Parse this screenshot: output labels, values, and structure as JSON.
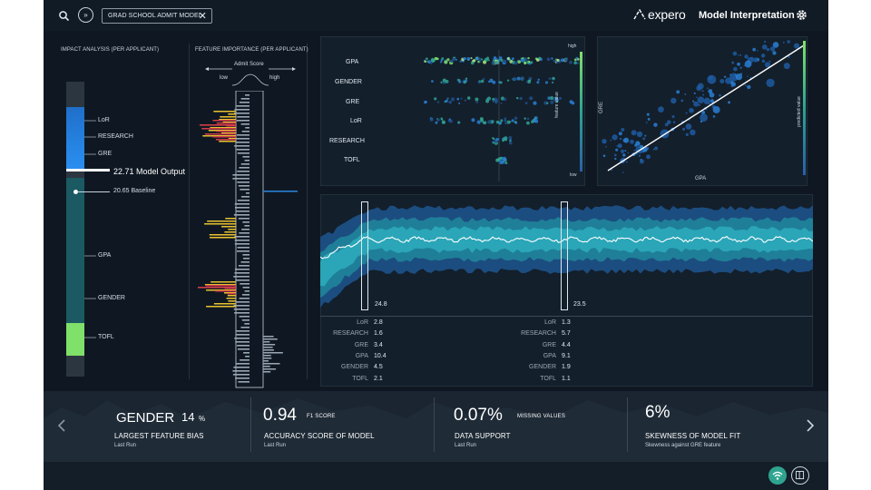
{
  "header": {
    "search_icon": "search-icon",
    "forward_icon": "double-chevron-right-icon",
    "forward_label": "»",
    "chip_label": "GRAD SCHOOL ADMIT MODEL",
    "chip_close": "✕",
    "brand": "expero",
    "title": "Model Interpretation",
    "settings_icon": "gear-icon"
  },
  "impact": {
    "title": "IMPACT ANALYSIS (per applicant)",
    "labels": [
      "LoR",
      "RESEARCH",
      "GRE"
    ],
    "model_output": "22.71 Model Output",
    "baseline": "20.65 Baseline",
    "lower_labels": [
      "GPA",
      "GENDER",
      "TOFL"
    ]
  },
  "importance": {
    "title": "FEATURE IMPORTANCE (per applicant)",
    "admit_score": "Admit Score",
    "low": "low",
    "high": "high"
  },
  "beeswarm": {
    "features": [
      "GPA",
      "GENDER",
      "GRE",
      "LoR",
      "RESEARCH",
      "TOFL"
    ],
    "legend_high": "high",
    "legend_low": "low",
    "legend_title": "feature value"
  },
  "scatter": {
    "xlabel": "GPA",
    "ylabel": "GRE",
    "legend_title": "predicted value"
  },
  "series": {
    "marker1_value": "24.8",
    "marker2_value": "23.5",
    "table1": [
      {
        "k": "LoR",
        "v": "2.8"
      },
      {
        "k": "RESEARCH",
        "v": "1.6"
      },
      {
        "k": "GRE",
        "v": "3.4"
      },
      {
        "k": "GPA",
        "v": "10.4"
      },
      {
        "k": "GENDER",
        "v": "4.5"
      },
      {
        "k": "TOFL",
        "v": "2.1"
      }
    ],
    "table2": [
      {
        "k": "LoR",
        "v": "1.3"
      },
      {
        "k": "RESEARCH",
        "v": "5.7"
      },
      {
        "k": "GRE",
        "v": "4.4"
      },
      {
        "k": "GPA",
        "v": "9.1"
      },
      {
        "k": "GENDER",
        "v": "1.9"
      },
      {
        "k": "TOFL",
        "v": "1.1"
      }
    ]
  },
  "kpis": {
    "k1": {
      "value": "GENDER",
      "percent": "14",
      "unit": "%",
      "title": "LARGEST FEATURE BIAS",
      "sub": "Last Run"
    },
    "k2": {
      "value": "0.94",
      "suffix": "F1 SCORE",
      "title": "ACCURACY SCORE OF MODEL",
      "sub": "Last Run"
    },
    "k3": {
      "value": "0.07%",
      "suffix": "MISSING VALUES",
      "title": "DATA SUPPORT",
      "sub": "Last Run"
    },
    "k4": {
      "value": "6%",
      "title": "SKEWNESS OF MODEL FIT",
      "sub": "Skewness against GRE feature"
    },
    "prev_icon": "chevron-left-icon",
    "next_icon": "chevron-right-icon"
  },
  "footer": {
    "wifi_icon": "wifi-icon",
    "panel_icon": "side-panel-icon"
  },
  "colors": {
    "background": "#0f1822",
    "accent_teal": "#2fa38f",
    "blue": "#2a7fd4",
    "green": "#7fe06a",
    "red": "#d23d4b",
    "yellow": "#e8c230"
  }
}
